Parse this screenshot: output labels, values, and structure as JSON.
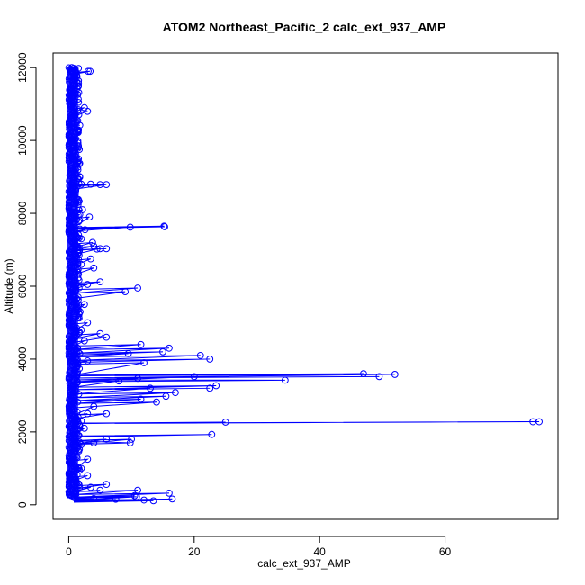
{
  "chart_data": {
    "type": "line",
    "title": "ATOM2 Northeast_Pacific_2 calc_ext_937_AMP",
    "xlabel": "calc_ext_937_AMP",
    "ylabel": "Altitude (m)",
    "xlim": [
      -2.5,
      78
    ],
    "ylim": [
      -400,
      12400
    ],
    "x_ticks": [
      0,
      20,
      40,
      60
    ],
    "y_ticks": [
      0,
      2000,
      4000,
      6000,
      8000,
      10000,
      12000
    ],
    "grid": false,
    "legend": "none",
    "marker": "open-circle",
    "colors": {
      "series": "#0000ff",
      "axis": "#000000"
    },
    "series": [
      {
        "points": [
          [
            0.5,
            12000
          ],
          [
            0.8,
            11980
          ],
          [
            1.0,
            11950
          ],
          [
            3.1,
            11900
          ],
          [
            3.4,
            11900
          ],
          [
            1.2,
            11860
          ],
          [
            0.9,
            11800
          ],
          [
            1.3,
            11750
          ],
          [
            0.7,
            11600
          ],
          [
            1.5,
            11500
          ],
          [
            1.0,
            11300
          ],
          [
            0.8,
            11100
          ],
          [
            2.5,
            10900
          ],
          [
            3.0,
            10800
          ],
          [
            1.0,
            10700
          ],
          [
            1.4,
            10300
          ],
          [
            0.9,
            10000
          ],
          [
            1.2,
            9800
          ],
          [
            0.7,
            9500
          ],
          [
            1.1,
            9200
          ],
          [
            0.9,
            9000
          ],
          [
            2.0,
            8800
          ],
          [
            3.5,
            8800
          ],
          [
            5.0,
            8790
          ],
          [
            6.0,
            8790
          ],
          [
            1.2,
            8700
          ],
          [
            0.8,
            8500
          ],
          [
            1.5,
            8300
          ],
          [
            2.2,
            8100
          ],
          [
            1.5,
            7950
          ],
          [
            3.3,
            7900
          ],
          [
            15.2,
            7650
          ],
          [
            15.3,
            7630
          ],
          [
            9.8,
            7620
          ],
          [
            2.6,
            7550
          ],
          [
            1.0,
            7500
          ],
          [
            2.0,
            7300
          ],
          [
            3.8,
            7200
          ],
          [
            4.0,
            7100
          ],
          [
            6.0,
            7030
          ],
          [
            5.0,
            7030
          ],
          [
            4.5,
            7020
          ],
          [
            1.5,
            6900
          ],
          [
            3.5,
            6750
          ],
          [
            2.0,
            6600
          ],
          [
            4.0,
            6500
          ],
          [
            1.0,
            6350
          ],
          [
            5.0,
            6120
          ],
          [
            3.0,
            6050
          ],
          [
            11.0,
            5950
          ],
          [
            9.0,
            5850
          ],
          [
            1.5,
            5700
          ],
          [
            2.5,
            5500
          ],
          [
            1.8,
            5300
          ],
          [
            3.0,
            5000
          ],
          [
            2.0,
            4800
          ],
          [
            5.0,
            4700
          ],
          [
            6.0,
            4600
          ],
          [
            2.5,
            4500
          ],
          [
            11.5,
            4400
          ],
          [
            16.0,
            4300
          ],
          [
            15.0,
            4200
          ],
          [
            9.5,
            4150
          ],
          [
            21.0,
            4100
          ],
          [
            22.5,
            4000
          ],
          [
            3.0,
            3950
          ],
          [
            12.0,
            3900
          ],
          [
            47.0,
            3600
          ],
          [
            52.0,
            3580
          ],
          [
            49.5,
            3520
          ],
          [
            20.0,
            3520
          ],
          [
            34.5,
            3420
          ],
          [
            11.0,
            3470
          ],
          [
            8.0,
            3400
          ],
          [
            23.5,
            3270
          ],
          [
            22.5,
            3200
          ],
          [
            13.0,
            3200
          ],
          [
            17.0,
            3080
          ],
          [
            15.5,
            2980
          ],
          [
            11.5,
            2900
          ],
          [
            14.0,
            2820
          ],
          [
            4.0,
            2700
          ],
          [
            3.0,
            2500
          ],
          [
            6.0,
            2500
          ],
          [
            1.5,
            2400
          ],
          [
            2.0,
            2300
          ],
          [
            25.0,
            2270
          ],
          [
            74.0,
            2280
          ],
          [
            75.0,
            2280
          ],
          [
            1.0,
            2270
          ],
          [
            2.5,
            2100
          ],
          [
            22.8,
            1930
          ],
          [
            1.5,
            1900
          ],
          [
            10.0,
            1800
          ],
          [
            9.8,
            1700
          ],
          [
            6.0,
            1800
          ],
          [
            4.0,
            1700
          ],
          [
            2.0,
            1650
          ],
          [
            1.5,
            1500
          ],
          [
            3.0,
            1250
          ],
          [
            2.0,
            1000
          ],
          [
            3.0,
            800
          ],
          [
            1.0,
            700
          ],
          [
            6.0,
            560
          ],
          [
            3.5,
            480
          ],
          [
            5.0,
            400
          ],
          [
            11.0,
            400
          ],
          [
            16.0,
            320
          ],
          [
            10.5,
            250
          ],
          [
            10.8,
            220
          ],
          [
            16.5,
            160
          ],
          [
            12.0,
            130
          ],
          [
            13.5,
            110
          ],
          [
            7.5,
            150
          ],
          [
            4.0,
            170
          ],
          [
            1.0,
            200
          ]
        ]
      }
    ],
    "dense_band": {
      "x_min": 0.0,
      "x_max": 1.8,
      "y_min": 180,
      "y_max": 12000
    }
  }
}
